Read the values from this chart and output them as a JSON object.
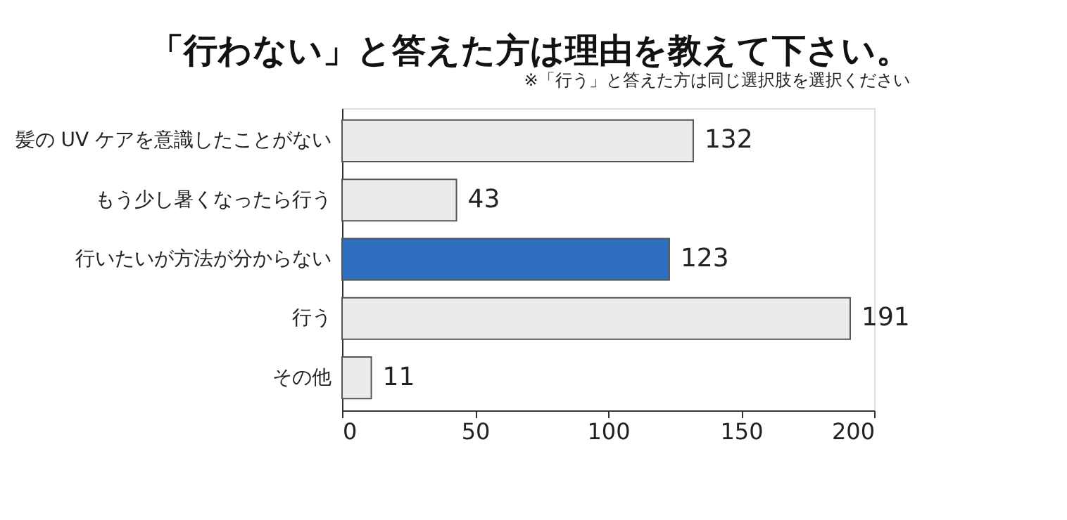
{
  "chart_data": {
    "type": "bar",
    "orientation": "horizontal",
    "title": "「行わない」と答えた方は理由を教えて下さい。",
    "subtitle": "※「行う」と答えた方は同じ選択肢を選択ください",
    "categories": [
      "髪の UV ケアを意識したことがない",
      "もう少し暑くなったら行う",
      "行いたいが方法が分からない",
      "行う",
      "その他"
    ],
    "values": [
      132,
      43,
      123,
      191,
      11
    ],
    "colors": [
      "#ebebeb",
      "#ebebeb",
      "#2e6fbf",
      "#ebebeb",
      "#ebebeb"
    ],
    "xlim": [
      0,
      200
    ],
    "xticks": [
      0,
      50,
      100,
      150,
      200
    ],
    "grid": false,
    "data_labels": true
  }
}
